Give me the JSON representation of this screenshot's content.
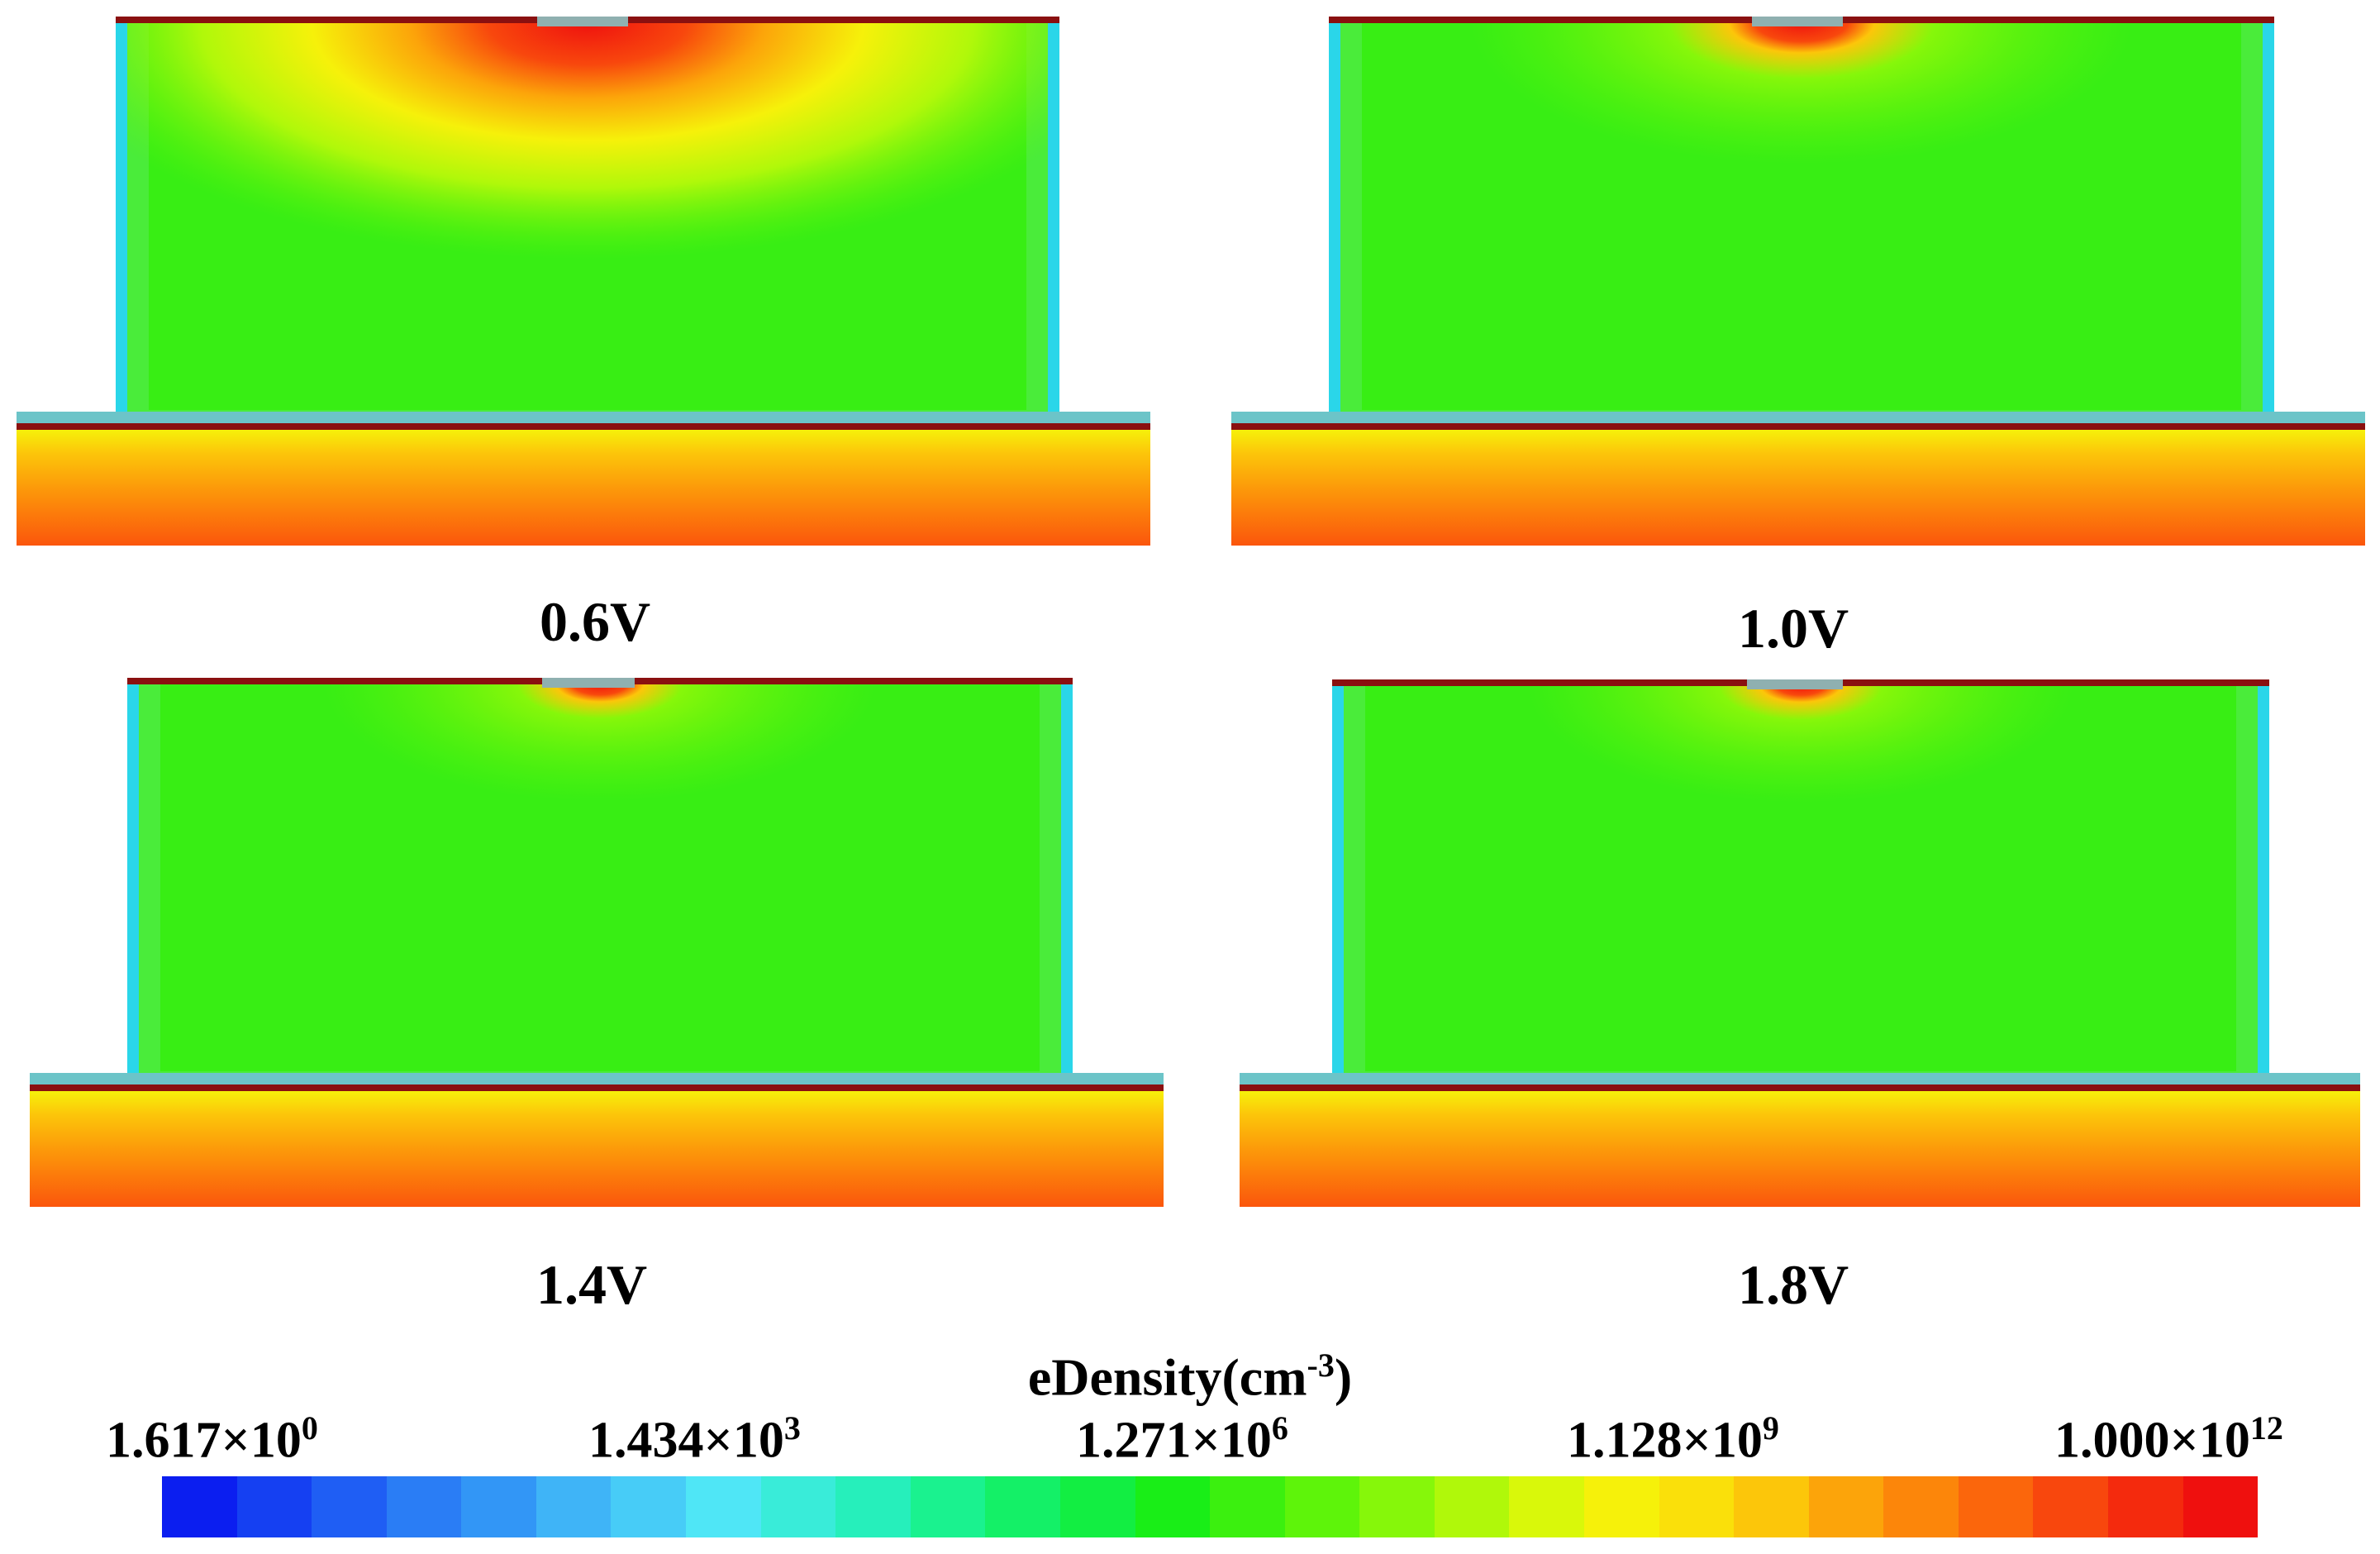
{
  "figure": {
    "panels": [
      {
        "label": "0.6V"
      },
      {
        "label": "1.0V"
      },
      {
        "label": "1.4V"
      },
      {
        "label": "1.8V"
      }
    ]
  },
  "colorbar": {
    "title": "eDensity(cm",
    "title_exp": "-3",
    "title_close": ")",
    "ticks": [
      {
        "mant": "1.617×10",
        "exp": "0"
      },
      {
        "mant": "1.434×10",
        "exp": "3"
      },
      {
        "mant": "1.271×10",
        "exp": "6"
      },
      {
        "mant": "1.128×10",
        "exp": "9"
      },
      {
        "mant": "1.000×10",
        "exp": "12"
      }
    ],
    "colors": [
      "#0b1ef0",
      "#1540f2",
      "#1f5ef4",
      "#2a7df5",
      "#3296f6",
      "#3fb4f7",
      "#47ccf7",
      "#4fe6f6",
      "#39ecd9",
      "#26efbb",
      "#1af28f",
      "#14f067",
      "#12ee42",
      "#19ee17",
      "#3bf00f",
      "#5ef40a",
      "#86f70a",
      "#b0f80a",
      "#d9f80a",
      "#f6f10a",
      "#fae00a",
      "#fcc60a",
      "#fca40a",
      "#fc860a",
      "#fb660c",
      "#f8470d",
      "#f42a0d",
      "#ef100e"
    ]
  }
}
